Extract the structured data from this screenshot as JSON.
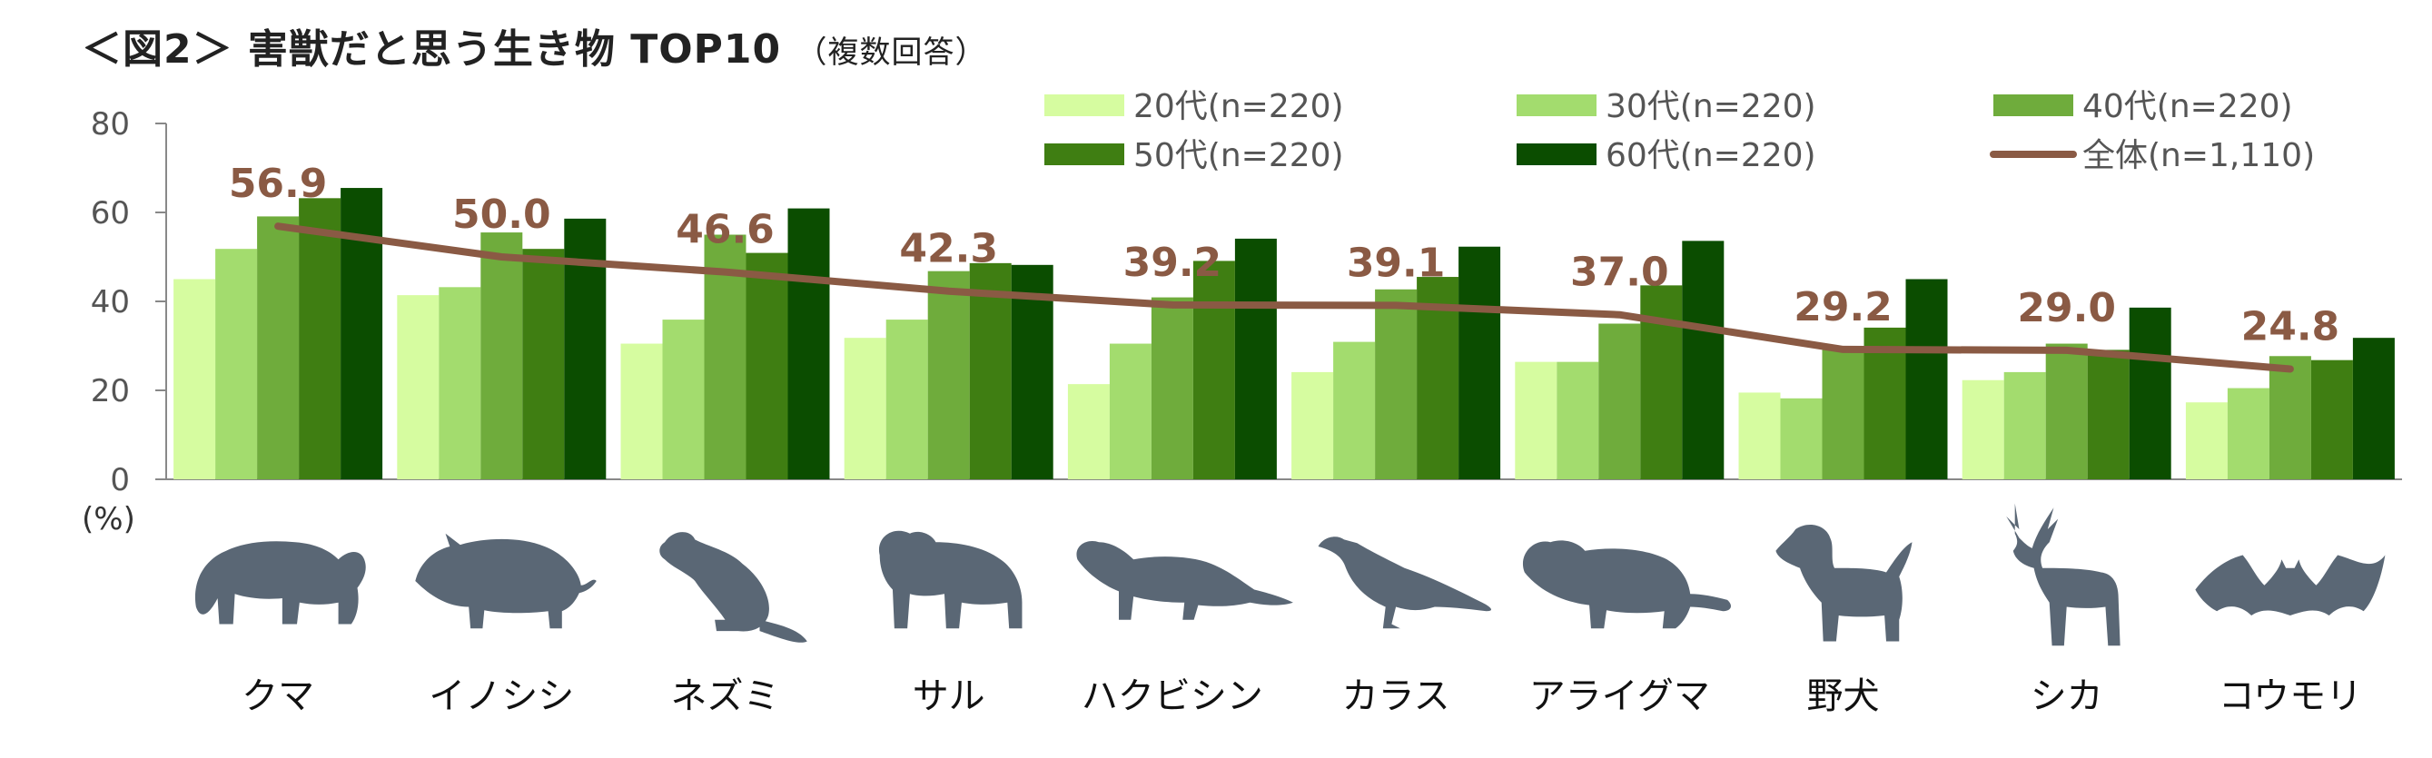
{
  "title": "＜図2＞ 害獣だと思う生き物 TOP10",
  "subtitle": "（複数回答）",
  "chart_data": {
    "type": "bar",
    "title": "＜図2＞ 害獣だと思う生き物 TOP10",
    "subtitle": "（複数回答）",
    "ylabel": "(%)",
    "ylim": [
      0,
      80
    ],
    "yticks": [
      0,
      20,
      40,
      60,
      80
    ],
    "grid": false,
    "legend_position": "top-right",
    "categories": [
      "クマ",
      "イノシシ",
      "ネズミ",
      "サル",
      "ハクビシン",
      "カラス",
      "アライグマ",
      "野犬",
      "シカ",
      "コウモリ"
    ],
    "category_icons": [
      "bear-icon",
      "boar-icon",
      "rat-icon",
      "monkey-icon",
      "masked-palm-civet-icon",
      "crow-icon",
      "raccoon-icon",
      "dog-icon",
      "deer-icon",
      "bat-icon"
    ],
    "series": [
      {
        "name": "20代(n=220)",
        "type": "bar",
        "color": "#d6fca0",
        "values": [
          45.0,
          41.4,
          30.5,
          31.8,
          21.4,
          24.1,
          26.4,
          19.5,
          22.3,
          17.3
        ]
      },
      {
        "name": "30代(n=220)",
        "type": "bar",
        "color": "#a3dc6e",
        "values": [
          51.8,
          43.2,
          35.9,
          35.9,
          30.5,
          30.9,
          26.4,
          18.2,
          24.1,
          20.5
        ]
      },
      {
        "name": "40代(n=220)",
        "type": "bar",
        "color": "#6fac3c",
        "values": [
          59.1,
          55.5,
          55.0,
          46.8,
          40.9,
          42.7,
          35.0,
          29.1,
          30.5,
          27.7
        ]
      },
      {
        "name": "50代(n=220)",
        "type": "bar",
        "color": "#3f7e12",
        "values": [
          63.2,
          51.8,
          50.9,
          48.6,
          49.1,
          45.5,
          43.6,
          34.1,
          29.1,
          26.8
        ]
      },
      {
        "name": "60代(n=220)",
        "type": "bar",
        "color": "#0b4d00",
        "values": [
          65.5,
          58.6,
          60.9,
          48.2,
          54.1,
          52.3,
          53.6,
          45.0,
          38.6,
          31.8
        ]
      },
      {
        "name": "全体(n=1,110)",
        "type": "line",
        "color": "#8a5a44",
        "values": [
          56.9,
          50.0,
          46.6,
          42.3,
          39.2,
          39.1,
          37.0,
          29.2,
          29.0,
          24.8
        ]
      }
    ],
    "data_labels": [
      "56.9",
      "50.0",
      "46.6",
      "42.3",
      "39.2",
      "39.1",
      "37.0",
      "29.2",
      "29.0",
      "24.8"
    ]
  }
}
